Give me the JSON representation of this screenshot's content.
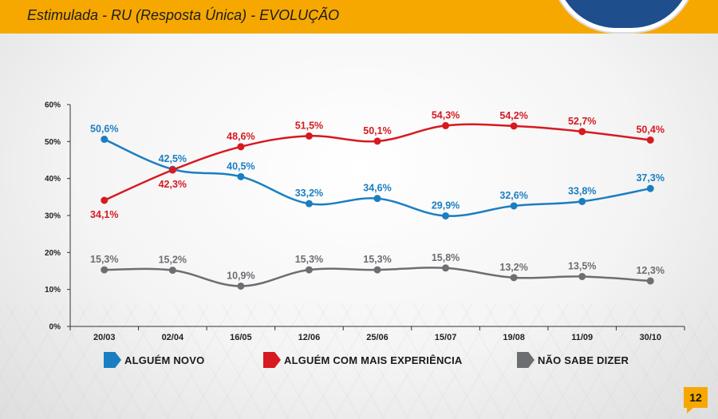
{
  "header": {
    "title": "Estimulada - RU (Resposta Única) - EVOLUÇÃO"
  },
  "page_number": "12",
  "colors": {
    "accent": "#f6a800",
    "brand_blue": "#1e4f8c"
  },
  "chart_data": {
    "type": "line",
    "title": "",
    "xlabel": "",
    "ylabel": "",
    "categories": [
      "20/03",
      "02/04",
      "16/05",
      "12/06",
      "25/06",
      "15/07",
      "19/08",
      "11/09",
      "30/10"
    ],
    "ylim": [
      0,
      60
    ],
    "yticks": [
      "0%",
      "10%",
      "20%",
      "30%",
      "40%",
      "50%",
      "60%"
    ],
    "grid": false,
    "legend_position": "bottom",
    "series": [
      {
        "name": "ALGUÉM NOVO",
        "color": "#1a7ec2",
        "values": [
          50.6,
          42.5,
          40.5,
          33.2,
          34.6,
          29.9,
          32.6,
          33.8,
          37.3
        ],
        "labels": [
          "50,6%",
          "42,5%",
          "40,5%",
          "33,2%",
          "34,6%",
          "29,9%",
          "32,6%",
          "33,8%",
          "37,3%"
        ]
      },
      {
        "name": "ALGUÉM COM MAIS EXPERIÊNCIA",
        "color": "#d71920",
        "values": [
          34.1,
          42.3,
          48.6,
          51.5,
          50.1,
          54.3,
          54.2,
          52.7,
          50.4
        ],
        "labels": [
          "34,1%",
          "42,3%",
          "48,6%",
          "51,5%",
          "50,1%",
          "54,3%",
          "54,2%",
          "52,7%",
          "50,4%"
        ]
      },
      {
        "name": "NÃO SABE DIZER",
        "color": "#6d6e71",
        "values": [
          15.3,
          15.2,
          10.9,
          15.3,
          15.3,
          15.8,
          13.2,
          13.5,
          12.3
        ],
        "labels": [
          "15,3%",
          "15,2%",
          "10,9%",
          "15,3%",
          "15,3%",
          "15,8%",
          "13,2%",
          "13,5%",
          "12,3%"
        ]
      }
    ]
  }
}
